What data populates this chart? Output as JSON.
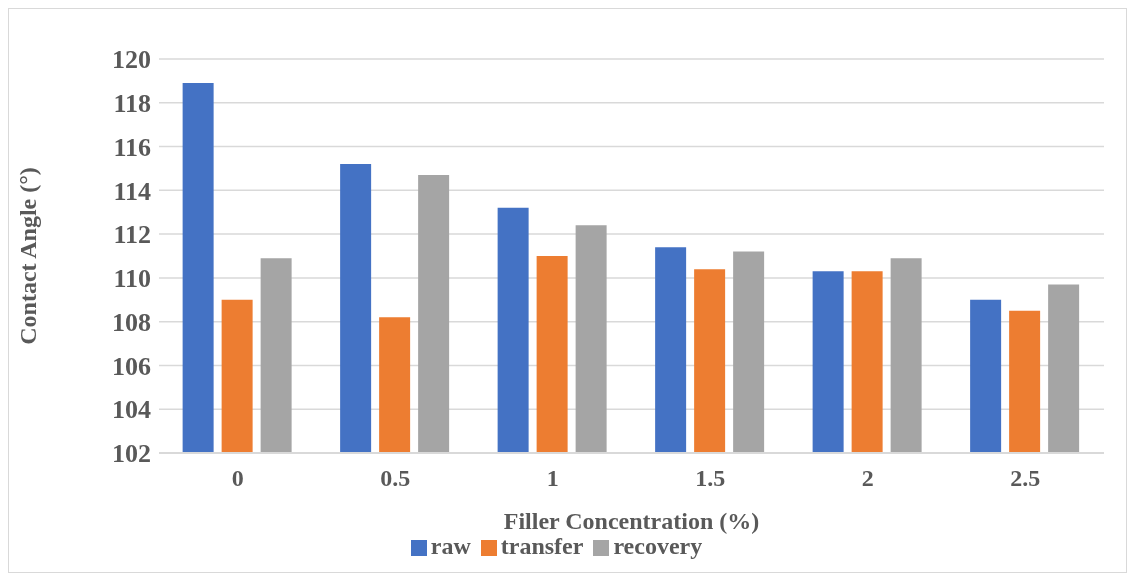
{
  "chart_data": {
    "type": "bar",
    "xlabel": "Filler Concentration (%)",
    "ylabel": "Contact Angle (°)",
    "categories": [
      "0",
      "0.5",
      "1",
      "1.5",
      "2",
      "2.5"
    ],
    "series": [
      {
        "name": "raw",
        "color": "#4472c4",
        "values": [
          118.9,
          115.2,
          113.2,
          111.4,
          110.3,
          109.0
        ]
      },
      {
        "name": "transfer",
        "color": "#ed7d31",
        "values": [
          109.0,
          108.2,
          111.0,
          110.4,
          110.3,
          108.5
        ]
      },
      {
        "name": "recovery",
        "color": "#a5a5a5",
        "values": [
          110.9,
          114.7,
          112.4,
          111.2,
          110.9,
          109.7
        ]
      }
    ],
    "ylim": [
      102,
      120
    ],
    "yticks": [
      102,
      104,
      106,
      108,
      110,
      112,
      114,
      116,
      118,
      120
    ],
    "grid": "y",
    "legend": "bottom"
  }
}
